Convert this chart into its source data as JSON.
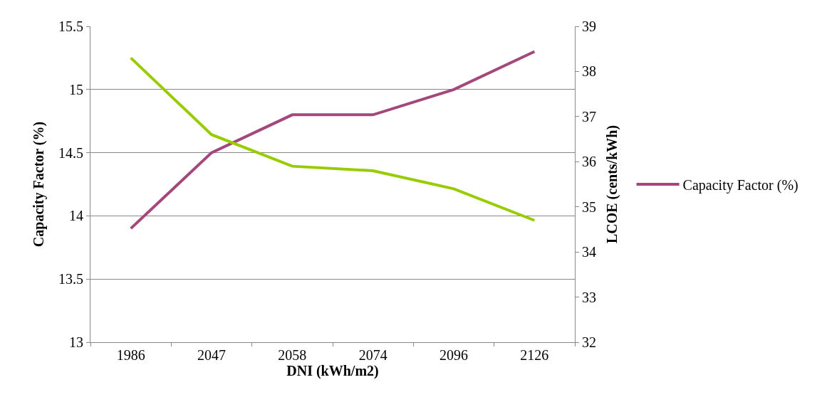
{
  "chart_data": {
    "type": "line",
    "xlabel": "DNI (kWh/m2)",
    "ylabel": "Capacity Factor (%)",
    "y2label": "LCOE (cents/kWh)",
    "categories": [
      "1986",
      "2047",
      "2058",
      "2074",
      "2096",
      "2126"
    ],
    "series": [
      {
        "name": "Capacity Factor (%)",
        "color": "#a4487c",
        "values": [
          13.9,
          14.5,
          14.8,
          14.8,
          15.0,
          15.3
        ]
      },
      {
        "color": "#99cc00",
        "axis": "y2",
        "values": [
          38.3,
          36.6,
          35.9,
          35.8,
          35.4,
          34.7
        ]
      }
    ],
    "ylim": [
      13,
      15.5
    ],
    "yticks": [
      13,
      13.5,
      14,
      14.5,
      15,
      15.5
    ],
    "y2lim": [
      32,
      39
    ],
    "y2ticks": [
      32,
      33,
      34,
      35,
      36,
      37,
      38,
      39
    ],
    "grid": "y",
    "legend": "right",
    "marker": "none",
    "line_style": "solid"
  }
}
